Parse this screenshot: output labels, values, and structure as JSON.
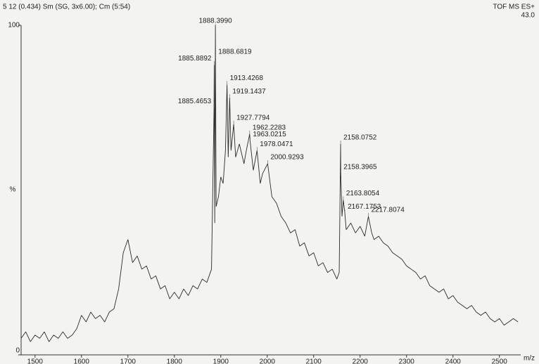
{
  "chart_data": {
    "type": "line",
    "header": "5  12 (0.434) Sm (SG, 3x6.00); Cm (5:54)",
    "instrument": "TOF MS ES+",
    "intensity": "43.0",
    "ylabel": "%",
    "xlabel": "m/z",
    "color": "#2b2b2b",
    "xlim": [
      1470,
      2561
    ],
    "ylim": [
      0,
      100
    ],
    "xticks": [
      1500,
      1600,
      1700,
      1800,
      1900,
      2000,
      2100,
      2200,
      2300,
      2400,
      2500
    ],
    "yticks": [
      0,
      100
    ],
    "x": [
      1470,
      1480,
      1490,
      1500,
      1510,
      1520,
      1530,
      1540,
      1550,
      1560,
      1570,
      1580,
      1590,
      1600,
      1610,
      1620,
      1630,
      1640,
      1650,
      1660,
      1670,
      1680,
      1690,
      1700,
      1710,
      1720,
      1730,
      1740,
      1750,
      1760,
      1770,
      1780,
      1790,
      1800,
      1810,
      1820,
      1830,
      1840,
      1850,
      1860,
      1870,
      1880,
      1885.4653,
      1885.8892,
      1887,
      1888.399,
      1888.6819,
      1890,
      1895,
      1900,
      1905,
      1910,
      1913.4268,
      1916,
      1919.1437,
      1922,
      1927.7794,
      1932,
      1940,
      1950,
      1955,
      1962.2283,
      1963.0215,
      1970,
      1978.0471,
      1985,
      1990,
      2000.9293,
      2010,
      2020,
      2030,
      2040,
      2050,
      2060,
      2070,
      2080,
      2090,
      2100,
      2110,
      2120,
      2130,
      2140,
      2150,
      2155,
      2158.0752,
      2158.3965,
      2161,
      2163.8054,
      2167.1753,
      2170,
      2180,
      2190,
      2200,
      2210,
      2217.8074,
      2225,
      2230,
      2240,
      2250,
      2260,
      2270,
      2280,
      2290,
      2300,
      2310,
      2320,
      2330,
      2340,
      2350,
      2360,
      2370,
      2380,
      2390,
      2400,
      2410,
      2420,
      2430,
      2440,
      2450,
      2460,
      2470,
      2480,
      2490,
      2500,
      2510,
      2520,
      2530,
      2540
    ],
    "values": [
      5,
      7,
      4,
      6,
      5,
      7,
      4,
      6,
      5,
      7,
      5,
      6,
      8,
      12,
      10,
      13,
      11,
      12,
      10,
      13,
      14,
      20,
      31,
      35,
      28,
      30,
      26,
      27,
      23,
      24,
      20,
      21,
      17,
      19,
      17,
      20,
      18,
      21,
      20,
      23,
      22,
      26,
      75,
      88,
      40,
      100,
      90,
      45,
      48,
      54,
      52,
      62,
      82,
      60,
      78,
      62,
      70,
      60,
      64,
      58,
      62,
      67,
      65,
      56,
      62,
      52,
      55,
      58,
      48,
      46,
      42,
      40,
      37,
      38,
      33,
      34,
      30,
      31,
      27,
      28,
      25,
      26,
      23,
      25,
      64,
      55,
      42,
      47,
      43,
      38,
      40,
      37,
      39,
      36,
      42,
      37,
      35,
      36,
      34,
      33,
      31,
      30,
      29,
      27,
      26,
      25,
      23,
      24,
      21,
      20,
      19,
      20,
      17,
      18,
      16,
      15,
      14,
      15,
      13,
      12,
      13,
      11,
      10,
      11,
      9,
      10,
      11,
      10
    ],
    "annotations": [
      {
        "label": "1888.3990",
        "x": 1888.399,
        "y": 100
      },
      {
        "label": "1885.8892",
        "x": 1885.8892,
        "y": 88
      },
      {
        "label": "1888.6819",
        "x": 1888.6819,
        "y": 90
      },
      {
        "label": "1913.4268",
        "x": 1913.4268,
        "y": 82
      },
      {
        "label": "1919.1437",
        "x": 1919.1437,
        "y": 78
      },
      {
        "label": "1885.4653",
        "x": 1885.4653,
        "y": 75
      },
      {
        "label": "1927.7794",
        "x": 1927.7794,
        "y": 70
      },
      {
        "label": "1962.2283",
        "x": 1962.2283,
        "y": 67
      },
      {
        "label": "1963.0215",
        "x": 1963.0215,
        "y": 65
      },
      {
        "label": "1978.0471",
        "x": 1978.0471,
        "y": 62
      },
      {
        "label": "2000.9293",
        "x": 2000.9293,
        "y": 58
      },
      {
        "label": "2158.0752",
        "x": 2158.0752,
        "y": 64
      },
      {
        "label": "2158.3965",
        "x": 2158.3965,
        "y": 55
      },
      {
        "label": "2163.8054",
        "x": 2163.8054,
        "y": 47
      },
      {
        "label": "2167.1753",
        "x": 2167.1753,
        "y": 43
      },
      {
        "label": "2217.8074",
        "x": 2217.8074,
        "y": 42
      }
    ]
  }
}
